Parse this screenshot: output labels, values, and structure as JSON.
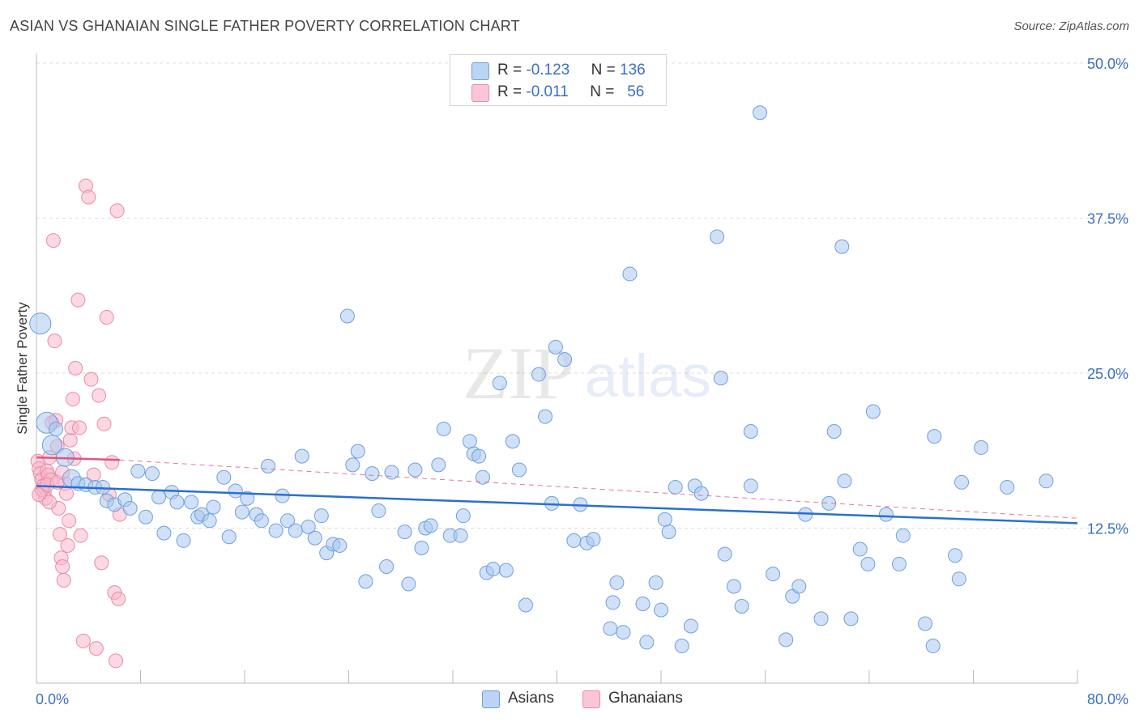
{
  "title": "ASIAN VS GHANAIAN SINGLE FATHER POVERTY CORRELATION CHART",
  "source": "Source: ZipAtlas.com",
  "watermark": {
    "zip": "ZIP",
    "atlas": "atlas"
  },
  "legend": {
    "asians": {
      "r_label": "R = ",
      "r_value": "-0.123",
      "n_label": "N = ",
      "n_value": "136"
    },
    "ghanaians": {
      "r_label": "R = ",
      "r_value": "-0.011",
      "n_label": "N = ",
      "n_value": "56"
    }
  },
  "bottom_legend": {
    "asians": "Asians",
    "ghanaians": "Ghanaians"
  },
  "colors": {
    "asian_fill": "#a9c8f0",
    "asian_stroke": "#6f9fdc",
    "asian_line": "#2a6fd1",
    "ghanaian_fill": "#f7b8cb",
    "ghanaian_stroke": "#ea8aa8",
    "ghanaian_line": "#e0557f",
    "grid": "#dddddd",
    "tick_label": "#3a6fc4"
  },
  "chart_data": {
    "type": "scatter",
    "title": "ASIAN VS GHANAIAN SINGLE FATHER POVERTY CORRELATION CHART",
    "xlabel": "",
    "ylabel": "Single Father Poverty",
    "xlim": [
      0,
      80
    ],
    "ylim": [
      0,
      50
    ],
    "x_tick_labels": [
      "0.0%",
      "80.0%"
    ],
    "y_ticks": [
      12.5,
      25,
      37.5,
      50
    ],
    "y_tick_labels": [
      "12.5%",
      "25.0%",
      "37.5%",
      "50.0%"
    ],
    "series": [
      {
        "name": "Asians",
        "trend": {
          "x": [
            0,
            80
          ],
          "y": [
            15.9,
            12.9
          ]
        },
        "points": [
          [
            0.3,
            29
          ],
          [
            0.8,
            21
          ],
          [
            1.2,
            19.2
          ],
          [
            1.5,
            20.5
          ],
          [
            2.2,
            18.2
          ],
          [
            2.7,
            16.5
          ],
          [
            3.2,
            16.1
          ],
          [
            3.8,
            16
          ],
          [
            4.5,
            15.8
          ],
          [
            5.1,
            15.8
          ],
          [
            5.4,
            14.7
          ],
          [
            6.0,
            14.4
          ],
          [
            6.8,
            14.8
          ],
          [
            7.2,
            14.1
          ],
          [
            7.8,
            17.1
          ],
          [
            8.4,
            13.4
          ],
          [
            8.9,
            16.9
          ],
          [
            9.4,
            15
          ],
          [
            9.8,
            12.1
          ],
          [
            10.4,
            15.4
          ],
          [
            10.8,
            14.6
          ],
          [
            11.3,
            11.5
          ],
          [
            11.9,
            14.6
          ],
          [
            12.4,
            13.4
          ],
          [
            12.7,
            13.6
          ],
          [
            13.3,
            13.1
          ],
          [
            13.6,
            14.2
          ],
          [
            14.4,
            16.6
          ],
          [
            14.8,
            11.8
          ],
          [
            15.3,
            15.5
          ],
          [
            15.8,
            13.8
          ],
          [
            16.2,
            14.9
          ],
          [
            16.9,
            13.6
          ],
          [
            17.3,
            13.1
          ],
          [
            17.8,
            17.5
          ],
          [
            18.4,
            12.3
          ],
          [
            18.9,
            15.1
          ],
          [
            19.3,
            13.1
          ],
          [
            19.9,
            12.3
          ],
          [
            20.4,
            18.3
          ],
          [
            20.9,
            12.6
          ],
          [
            21.4,
            11.7
          ],
          [
            21.9,
            13.5
          ],
          [
            22.3,
            10.5
          ],
          [
            22.8,
            11.2
          ],
          [
            23.3,
            11.1
          ],
          [
            23.9,
            29.6
          ],
          [
            24.3,
            17.6
          ],
          [
            24.7,
            18.7
          ],
          [
            25.3,
            8.2
          ],
          [
            25.8,
            16.9
          ],
          [
            26.3,
            13.9
          ],
          [
            26.9,
            9.4
          ],
          [
            27.3,
            17.0
          ],
          [
            28.3,
            12.2
          ],
          [
            28.6,
            8.0
          ],
          [
            29.1,
            17.2
          ],
          [
            29.6,
            10.9
          ],
          [
            29.9,
            12.5
          ],
          [
            30.3,
            12.7
          ],
          [
            30.9,
            17.6
          ],
          [
            31.3,
            20.5
          ],
          [
            31.8,
            11.9
          ],
          [
            32.6,
            11.9
          ],
          [
            32.8,
            13.5
          ],
          [
            33.3,
            19.5
          ],
          [
            33.6,
            18.5
          ],
          [
            34.0,
            18.3
          ],
          [
            34.3,
            16.6
          ],
          [
            34.6,
            8.9
          ],
          [
            35.1,
            9.2
          ],
          [
            35.6,
            24.2
          ],
          [
            36.1,
            9.1
          ],
          [
            36.6,
            19.5
          ],
          [
            37.1,
            17.2
          ],
          [
            37.6,
            6.3
          ],
          [
            38.6,
            24.9
          ],
          [
            39.1,
            21.5
          ],
          [
            39.6,
            14.5
          ],
          [
            39.9,
            27.1
          ],
          [
            40.6,
            26.1
          ],
          [
            41.3,
            11.5
          ],
          [
            41.8,
            14.4
          ],
          [
            42.3,
            11.3
          ],
          [
            42.8,
            11.6
          ],
          [
            44.1,
            4.4
          ],
          [
            44.3,
            6.5
          ],
          [
            44.6,
            8.1
          ],
          [
            45.1,
            4.1
          ],
          [
            45.6,
            33
          ],
          [
            46.6,
            6.4
          ],
          [
            46.9,
            3.3
          ],
          [
            47.6,
            8.1
          ],
          [
            48.0,
            5.9
          ],
          [
            48.3,
            13.2
          ],
          [
            48.6,
            12.2
          ],
          [
            49.1,
            15.8
          ],
          [
            49.6,
            3.0
          ],
          [
            50.3,
            4.6
          ],
          [
            50.6,
            15.9
          ],
          [
            51.1,
            15.3
          ],
          [
            52.3,
            36
          ],
          [
            52.6,
            24.6
          ],
          [
            52.9,
            10.4
          ],
          [
            53.6,
            7.8
          ],
          [
            54.2,
            6.2
          ],
          [
            54.9,
            20.3
          ],
          [
            54.9,
            15.9
          ],
          [
            55.6,
            46
          ],
          [
            56.6,
            8.8
          ],
          [
            57.6,
            3.5
          ],
          [
            58.1,
            7.0
          ],
          [
            58.6,
            7.8
          ],
          [
            59.1,
            13.6
          ],
          [
            60.3,
            5.2
          ],
          [
            60.9,
            14.5
          ],
          [
            61.3,
            20.3
          ],
          [
            61.9,
            35.2
          ],
          [
            62.1,
            16.3
          ],
          [
            62.6,
            5.2
          ],
          [
            63.3,
            10.8
          ],
          [
            63.9,
            9.6
          ],
          [
            64.3,
            21.9
          ],
          [
            65.3,
            13.6
          ],
          [
            66.3,
            9.6
          ],
          [
            66.6,
            11.9
          ],
          [
            68.3,
            4.8
          ],
          [
            68.9,
            3
          ],
          [
            69.0,
            19.9
          ],
          [
            70.6,
            10.3
          ],
          [
            70.9,
            8.4
          ],
          [
            71.1,
            16.2
          ],
          [
            72.6,
            19.0
          ],
          [
            74.6,
            15.8
          ],
          [
            77.6,
            16.3
          ]
        ]
      },
      {
        "name": "Ghanaians",
        "trend": {
          "x": [
            0,
            6.4,
            80
          ],
          "y": [
            18.2,
            18.0,
            13.3
          ]
        },
        "points": [
          [
            0.1,
            17.9
          ],
          [
            0.2,
            17.3
          ],
          [
            0.3,
            16.9
          ],
          [
            0.4,
            16.4
          ],
          [
            0.5,
            15.9
          ],
          [
            0.6,
            15.4
          ],
          [
            0.7,
            14.9
          ],
          [
            0.8,
            17.1
          ],
          [
            0.9,
            16.8
          ],
          [
            1.0,
            18.2
          ],
          [
            1.1,
            16.4
          ],
          [
            1.2,
            21.0
          ],
          [
            1.3,
            35.7
          ],
          [
            1.4,
            27.6
          ],
          [
            1.5,
            21.2
          ],
          [
            1.6,
            19.1
          ],
          [
            1.7,
            14.1
          ],
          [
            1.8,
            12.0
          ],
          [
            1.9,
            10.1
          ],
          [
            2.0,
            9.4
          ],
          [
            2.1,
            8.3
          ],
          [
            2.2,
            16.1
          ],
          [
            2.3,
            15.3
          ],
          [
            2.4,
            11.1
          ],
          [
            2.5,
            13.1
          ],
          [
            2.6,
            19.6
          ],
          [
            2.7,
            20.6
          ],
          [
            2.8,
            22.9
          ],
          [
            2.9,
            18.1
          ],
          [
            3.0,
            25.4
          ],
          [
            3.2,
            30.9
          ],
          [
            3.3,
            20.6
          ],
          [
            3.4,
            11.9
          ],
          [
            3.6,
            3.4
          ],
          [
            3.8,
            40.1
          ],
          [
            4.0,
            39.2
          ],
          [
            4.2,
            24.5
          ],
          [
            4.4,
            16.8
          ],
          [
            4.6,
            2.8
          ],
          [
            4.8,
            23.2
          ],
          [
            5.0,
            9.7
          ],
          [
            5.2,
            20.9
          ],
          [
            5.4,
            29.5
          ],
          [
            5.6,
            15.2
          ],
          [
            5.8,
            17.8
          ],
          [
            6.0,
            7.3
          ],
          [
            6.1,
            1.8
          ],
          [
            6.2,
            38.1
          ],
          [
            6.3,
            6.8
          ],
          [
            6.4,
            13.6
          ],
          [
            0.4,
            15.6
          ],
          [
            0.8,
            16.0
          ],
          [
            1.6,
            16.2
          ],
          [
            2.0,
            17.0
          ],
          [
            0.2,
            15.2
          ],
          [
            1.0,
            14.6
          ]
        ]
      }
    ]
  }
}
